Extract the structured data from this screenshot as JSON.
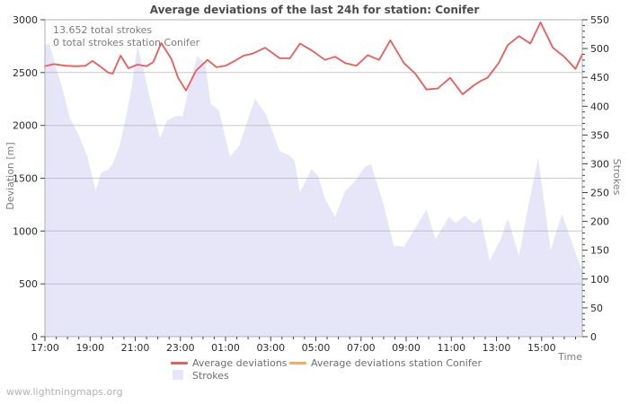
{
  "title": "Average deviations of the last 24h for station: Conifer",
  "annotations": {
    "total_strokes": "13.652 total strokes",
    "station_strokes": "0 total strokes station Conifer"
  },
  "axis_labels": {
    "left": "Deviation [m]",
    "right": "Strokes",
    "x": "Time"
  },
  "legend": [
    {
      "label": "Average deviations",
      "color": "#ef5a5a",
      "type": "line"
    },
    {
      "label": "Average deviations station Conifer",
      "color": "#fbaa60",
      "type": "line"
    },
    {
      "label": "Strokes",
      "color": "#e6e6f8",
      "type": "area"
    }
  ],
  "footer": "www.lightningmaps.org",
  "colors": {
    "avg_deviation_line": "#ef5a5a",
    "station_line": "#fbaa60",
    "strokes_fill": "#e6e6f8",
    "grid": "rgba(150,150,158,0.5)",
    "border": "#b0b0b0",
    "tick": "#444444",
    "tick_text": "#2a2a2a"
  },
  "chart_data": {
    "type": "line+area",
    "x_unit": "hours since 17:00",
    "x_span_hours": 23.8,
    "left_axis": {
      "label": "Deviation [m]",
      "min": 0,
      "max": 3000,
      "ticks": [
        0,
        500,
        1000,
        1500,
        2000,
        2500,
        3000
      ]
    },
    "right_axis": {
      "label": "Strokes",
      "min": 0,
      "max": 550,
      "ticks": [
        0,
        50,
        100,
        150,
        200,
        250,
        300,
        350,
        400,
        450,
        500,
        550
      ],
      "minor_step": 10
    },
    "x_axis": {
      "label": "Time",
      "tick_labels": [
        "17:00",
        "19:00",
        "21:00",
        "23:00",
        "01:00",
        "03:00",
        "05:00",
        "07:00",
        "09:00",
        "11:00",
        "13:00",
        "15:00"
      ],
      "tick_hours": [
        0,
        2,
        4,
        6,
        8,
        10,
        12,
        14,
        16,
        18,
        20,
        22
      ],
      "minor_step_hours": 0.5
    },
    "grid": "horizontal-only",
    "legend_position": "bottom",
    "series": [
      {
        "name": "Average deviations",
        "axis": "left",
        "type": "line",
        "color": "#ef5a5a",
        "points": [
          [
            0,
            2560
          ],
          [
            0.4,
            2580
          ],
          [
            0.9,
            2565
          ],
          [
            1.4,
            2560
          ],
          [
            1.8,
            2565
          ],
          [
            2.1,
            2610
          ],
          [
            2.5,
            2550
          ],
          [
            2.8,
            2500
          ],
          [
            3.0,
            2490
          ],
          [
            3.35,
            2660
          ],
          [
            3.7,
            2540
          ],
          [
            4.1,
            2575
          ],
          [
            4.5,
            2560
          ],
          [
            4.8,
            2600
          ],
          [
            5.15,
            2780
          ],
          [
            5.6,
            2630
          ],
          [
            5.9,
            2450
          ],
          [
            6.25,
            2330
          ],
          [
            6.7,
            2520
          ],
          [
            7.2,
            2620
          ],
          [
            7.6,
            2550
          ],
          [
            8.0,
            2565
          ],
          [
            8.4,
            2610
          ],
          [
            8.8,
            2660
          ],
          [
            9.2,
            2680
          ],
          [
            9.75,
            2735
          ],
          [
            10.4,
            2635
          ],
          [
            10.85,
            2635
          ],
          [
            11.3,
            2775
          ],
          [
            11.85,
            2705
          ],
          [
            12.4,
            2620
          ],
          [
            12.85,
            2650
          ],
          [
            13.3,
            2590
          ],
          [
            13.8,
            2565
          ],
          [
            14.3,
            2665
          ],
          [
            14.8,
            2620
          ],
          [
            15.3,
            2805
          ],
          [
            15.9,
            2590
          ],
          [
            16.4,
            2490
          ],
          [
            16.9,
            2340
          ],
          [
            17.4,
            2350
          ],
          [
            17.95,
            2450
          ],
          [
            18.5,
            2295
          ],
          [
            19.0,
            2380
          ],
          [
            19.3,
            2420
          ],
          [
            19.6,
            2450
          ],
          [
            20.1,
            2590
          ],
          [
            20.5,
            2760
          ],
          [
            21.0,
            2845
          ],
          [
            21.5,
            2775
          ],
          [
            21.95,
            2975
          ],
          [
            22.5,
            2735
          ],
          [
            23.0,
            2650
          ],
          [
            23.5,
            2535
          ],
          [
            23.8,
            2675
          ]
        ]
      },
      {
        "name": "Average deviations station Conifer",
        "axis": "left",
        "type": "line",
        "color": "#fbaa60",
        "points": []
      },
      {
        "name": "Strokes",
        "axis": "right",
        "type": "area",
        "color": "#e6e6f8",
        "points": [
          [
            0,
            505
          ],
          [
            0.2,
            510
          ],
          [
            0.5,
            465
          ],
          [
            0.8,
            427
          ],
          [
            1.1,
            380
          ],
          [
            1.5,
            350
          ],
          [
            1.9,
            310
          ],
          [
            2.25,
            253
          ],
          [
            2.5,
            285
          ],
          [
            2.8,
            290
          ],
          [
            3.0,
            300
          ],
          [
            3.3,
            331
          ],
          [
            3.6,
            383
          ],
          [
            3.85,
            435
          ],
          [
            4.1,
            505
          ],
          [
            4.35,
            466
          ],
          [
            4.6,
            422
          ],
          [
            5.1,
            344
          ],
          [
            5.4,
            375
          ],
          [
            5.8,
            383
          ],
          [
            6.1,
            383
          ],
          [
            6.45,
            445
          ],
          [
            6.75,
            487
          ],
          [
            7.1,
            474
          ],
          [
            7.35,
            404
          ],
          [
            7.7,
            393
          ],
          [
            8.2,
            313
          ],
          [
            8.6,
            331
          ],
          [
            9.3,
            413
          ],
          [
            9.8,
            385
          ],
          [
            10.4,
            322
          ],
          [
            10.8,
            315
          ],
          [
            11.05,
            306
          ],
          [
            11.3,
            250
          ],
          [
            11.8,
            291
          ],
          [
            12.1,
            279
          ],
          [
            12.4,
            240
          ],
          [
            12.85,
            208
          ],
          [
            13.3,
            253
          ],
          [
            13.65,
            266
          ],
          [
            14.2,
            296
          ],
          [
            14.45,
            299
          ],
          [
            15.0,
            229
          ],
          [
            15.45,
            158
          ],
          [
            15.9,
            156
          ],
          [
            16.4,
            188
          ],
          [
            16.9,
            221
          ],
          [
            17.3,
            169
          ],
          [
            17.9,
            208
          ],
          [
            18.2,
            197
          ],
          [
            18.6,
            210
          ],
          [
            19.0,
            196
          ],
          [
            19.3,
            206
          ],
          [
            19.7,
            132
          ],
          [
            20.2,
            170
          ],
          [
            20.5,
            205
          ],
          [
            21.0,
            140
          ],
          [
            21.4,
            225
          ],
          [
            21.85,
            310
          ],
          [
            22.4,
            150
          ],
          [
            22.9,
            213
          ],
          [
            23.2,
            180
          ],
          [
            23.6,
            135
          ],
          [
            23.8,
            114
          ]
        ]
      }
    ]
  }
}
